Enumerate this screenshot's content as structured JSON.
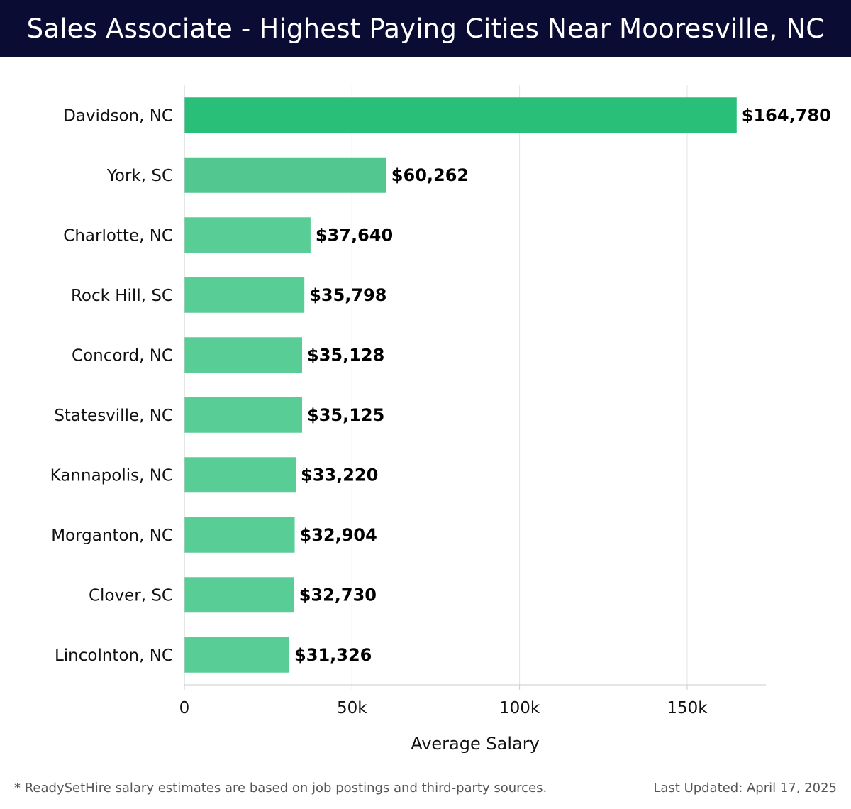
{
  "header": {
    "title": "Sales Associate - Highest Paying Cities Near Mooresville, NC"
  },
  "chart_data": {
    "type": "bar",
    "orientation": "horizontal",
    "title": "Sales Associate - Highest Paying Cities Near Mooresville, NC",
    "categories": [
      "Davidson, NC",
      "York, SC",
      "Charlotte, NC",
      "Rock Hill, SC",
      "Concord, NC",
      "Statesville, NC",
      "Kannapolis, NC",
      "Morganton, NC",
      "Clover, SC",
      "Lincolnton, NC"
    ],
    "values": [
      164780,
      60262,
      37640,
      35798,
      35128,
      35125,
      33220,
      32904,
      32730,
      31326
    ],
    "data_labels": [
      "$164,780",
      "$60,262",
      "$37,640",
      "$35,798",
      "$35,128",
      "$35,125",
      "$33,220",
      "$32,904",
      "$32,730",
      "$31,326"
    ],
    "xlabel": "Average Salary",
    "ylabel": "",
    "xlim": [
      0,
      173500
    ],
    "xticks": [
      0,
      50000,
      100000,
      150000
    ],
    "xtick_labels": [
      "0",
      "50k",
      "100k",
      "150k"
    ],
    "grid": true,
    "legend": "none",
    "colors": {
      "top_bar": "#2abf78",
      "second_bar": "#52c890",
      "other_bars": "#58cd96",
      "grid": "#e3e3e3",
      "axis": "#cccccc",
      "header_bg": "#0b0c33"
    }
  },
  "footer": {
    "note": "* ReadySetHire salary estimates are based on job postings and third-party sources.",
    "updated": "Last Updated: April 17, 2025"
  }
}
